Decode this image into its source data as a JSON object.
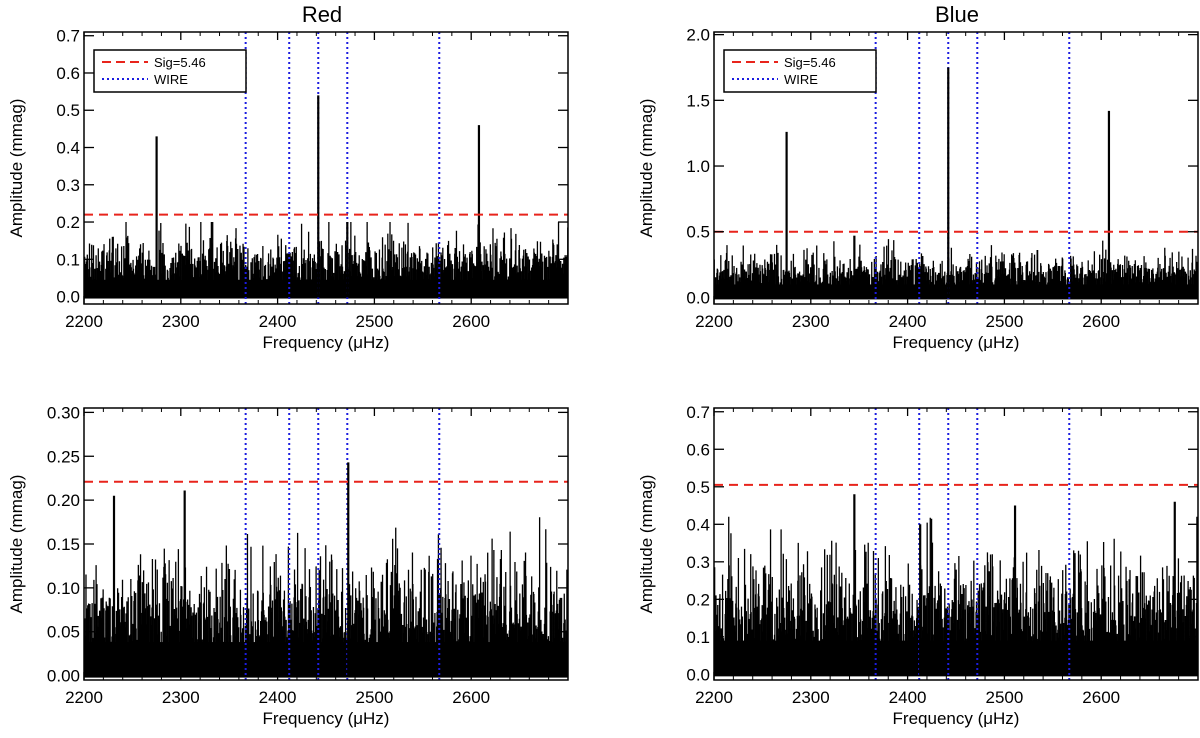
{
  "figure": {
    "columns": [
      "Red",
      "Blue"
    ]
  },
  "chart_data": [
    {
      "type": "line",
      "column": "Red",
      "row": "top",
      "title": "Red",
      "xlabel": "Frequency (μHz)",
      "ylabel": "Amplitude (mmag)",
      "xlim": [
        2200,
        2700
      ],
      "ylim": [
        -0.02,
        0.71
      ],
      "xticks": [
        "2200",
        "2300",
        "2400",
        "2500",
        "2600"
      ],
      "yticks": [
        "0.0",
        "0.1",
        "0.2",
        "0.3",
        "0.4",
        "0.5",
        "0.6",
        "0.7"
      ],
      "yticks_values": [
        0,
        0.1,
        0.2,
        0.3,
        0.4,
        0.5,
        0.6,
        0.7
      ],
      "significance": 0.22,
      "wire_frequencies": [
        2367,
        2412,
        2442,
        2472,
        2567
      ],
      "noise_level": 0.1,
      "noise_max": 0.2,
      "peaks": [
        {
          "x": 2275,
          "y": 0.43
        },
        {
          "x": 2442,
          "y": 0.54
        },
        {
          "x": 2608,
          "y": 0.46
        },
        {
          "x": 2472,
          "y": 0.2
        }
      ],
      "legend": [
        {
          "label": "Sig=5.46",
          "style": "dashed",
          "color": "#e8241c"
        },
        {
          "label": "WIRE",
          "style": "dotted",
          "color": "#1c1ce0"
        }
      ],
      "legend_position": "top-left"
    },
    {
      "type": "line",
      "column": "Blue",
      "row": "top",
      "title": "Blue",
      "xlabel": "Frequency (μHz)",
      "ylabel": "Amplitude (mmag)",
      "xlim": [
        2200,
        2700
      ],
      "ylim": [
        -0.05,
        2.02
      ],
      "xticks": [
        "2200",
        "2300",
        "2400",
        "2500",
        "2600"
      ],
      "yticks": [
        "0.0",
        "0.5",
        "1.0",
        "1.5",
        "2.0"
      ],
      "yticks_values": [
        0,
        0.5,
        1.0,
        1.5,
        2.0
      ],
      "significance": 0.5,
      "wire_frequencies": [
        2367,
        2412,
        2442,
        2472,
        2567
      ],
      "noise_level": 0.22,
      "noise_max": 0.47,
      "peaks": [
        {
          "x": 2275,
          "y": 1.26
        },
        {
          "x": 2442,
          "y": 1.75
        },
        {
          "x": 2608,
          "y": 1.42
        },
        {
          "x": 2345,
          "y": 0.47
        }
      ],
      "legend": [
        {
          "label": "Sig=5.46",
          "style": "dashed",
          "color": "#e8241c"
        },
        {
          "label": "WIRE",
          "style": "dotted",
          "color": "#1c1ce0"
        }
      ],
      "legend_position": "top-left"
    },
    {
      "type": "line",
      "column": "Red",
      "row": "bottom",
      "title": "",
      "xlabel": "Frequency (μHz)",
      "ylabel": "Amplitude (mmag)",
      "xlim": [
        2200,
        2700
      ],
      "ylim": [
        -0.005,
        0.305
      ],
      "xticks": [
        "2200",
        "2300",
        "2400",
        "2500",
        "2600"
      ],
      "yticks": [
        "0.00",
        "0.05",
        "0.10",
        "0.15",
        "0.20",
        "0.25",
        "0.30"
      ],
      "yticks_values": [
        0,
        0.05,
        0.1,
        0.15,
        0.2,
        0.25,
        0.3
      ],
      "significance": 0.221,
      "wire_frequencies": [
        2367,
        2412,
        2442,
        2472,
        2567
      ],
      "noise_level": 0.085,
      "noise_max": 0.19,
      "peaks": [
        {
          "x": 2231,
          "y": 0.205
        },
        {
          "x": 2304,
          "y": 0.211
        },
        {
          "x": 2473,
          "y": 0.243
        }
      ],
      "legend": [],
      "legend_position": "none"
    },
    {
      "type": "line",
      "column": "Blue",
      "row": "bottom",
      "title": "",
      "xlabel": "Frequency (μHz)",
      "ylabel": "Amplitude (mmag)",
      "xlim": [
        2200,
        2700
      ],
      "ylim": [
        -0.015,
        0.71
      ],
      "xticks": [
        "2200",
        "2300",
        "2400",
        "2500",
        "2600"
      ],
      "yticks": [
        "0.0",
        "0.1",
        "0.2",
        "0.3",
        "0.4",
        "0.5",
        "0.6",
        "0.7"
      ],
      "yticks_values": [
        0,
        0.1,
        0.2,
        0.3,
        0.4,
        0.5,
        0.6,
        0.7
      ],
      "significance": 0.505,
      "wire_frequencies": [
        2367,
        2412,
        2442,
        2472,
        2567
      ],
      "noise_level": 0.2,
      "noise_max": 0.42,
      "peaks": [
        {
          "x": 2345,
          "y": 0.48
        },
        {
          "x": 2676,
          "y": 0.46
        },
        {
          "x": 2511,
          "y": 0.45
        },
        {
          "x": 2413,
          "y": 0.4
        }
      ],
      "legend": [],
      "legend_position": "none"
    }
  ]
}
